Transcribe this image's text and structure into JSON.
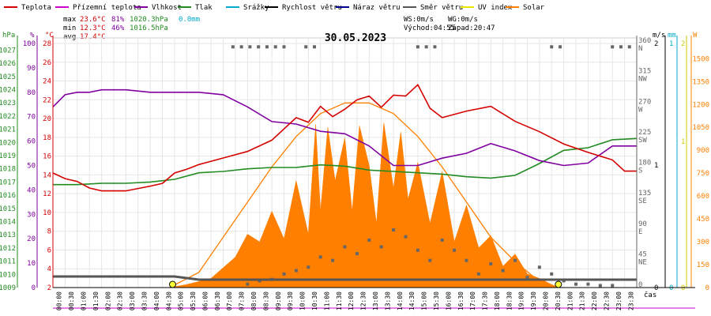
{
  "chart_data": {
    "type": "line",
    "date": "30.05.2023",
    "legend": [
      {
        "label": "Teplota",
        "color": "#d40000"
      },
      {
        "label": "Přízemní teplota",
        "color": "#cc00cc"
      },
      {
        "label": "Vlhkost",
        "color": "#8000a0"
      },
      {
        "label": "Tlak",
        "color": "#228b22"
      },
      {
        "label": "Srážky",
        "color": "#00aacc"
      },
      {
        "label": "Rychlost větru",
        "color": "#000000"
      },
      {
        "label": "Náraz větru",
        "color": "#000090"
      },
      {
        "label": "Směr větru",
        "color": "#555555"
      },
      {
        "label": "UV index",
        "color": "#e8e800"
      },
      {
        "label": "Solar",
        "color": "#ff8000"
      }
    ],
    "stats": {
      "max": {
        "label": "max",
        "temp": "23.6°C",
        "hum": "81%",
        "press": "1020.3hPa",
        "rain": "0.0mm"
      },
      "min": {
        "label": "min",
        "temp": "12.3°C",
        "hum": "46%",
        "press": "1016.5hPa"
      },
      "avg": {
        "label": "avg",
        "temp": "17.4°C"
      }
    },
    "wind_info": {
      "ws": "WS:0m/s",
      "wg": "WG:0m/s",
      "sunrise": "Východ:04:55",
      "sunset": "Západ:20:47"
    },
    "axes": {
      "hpa_unit": "hPa",
      "hpa": [
        "1027",
        "1026",
        "1025",
        "1024",
        "1023",
        "1022",
        "1021",
        "1020",
        "1019",
        "1018",
        "1017",
        "1016",
        "1015",
        "1014",
        "1013",
        "1012",
        "1011",
        "1010",
        "1009"
      ],
      "pct_unit": "%",
      "pct": [
        "100",
        "90",
        "80",
        "70",
        "60",
        "50",
        "40",
        "30",
        "20",
        "10",
        "0"
      ],
      "temp_unit": "°C",
      "temp": [
        "28",
        "26",
        "24",
        "22",
        "20",
        "18",
        "16",
        "14",
        "12",
        "10",
        "8",
        "6",
        "4",
        "2"
      ],
      "dir_labels": [
        {
          "deg": "360",
          "dir": "N"
        },
        {
          "deg": "315",
          "dir": "NW"
        },
        {
          "deg": "270",
          "dir": "W"
        },
        {
          "deg": "225",
          "dir": "SW"
        },
        {
          "deg": "180",
          "dir": "S"
        },
        {
          "deg": "135",
          "dir": "SE"
        },
        {
          "deg": "90",
          "dir": "E"
        },
        {
          "deg": "45",
          "dir": "NE"
        },
        {
          "deg": "0",
          "dir": ""
        }
      ],
      "ms_unit": "m/s",
      "ms": [
        "2",
        "1",
        "0"
      ],
      "mm_unit": "mm",
      "mm": [
        "1",
        "0"
      ],
      "uv": [
        "2",
        "1",
        "0"
      ],
      "w_unit": "W",
      "w": [
        "1500",
        "1350",
        "1200",
        "1050",
        "900",
        "750",
        "600",
        "450",
        "300",
        "150",
        "0"
      ],
      "time_unit": "čas",
      "x_ticks": [
        "00:00",
        "00:30",
        "01:00",
        "01:30",
        "02:00",
        "02:30",
        "03:00",
        "03:30",
        "04:00",
        "04:30",
        "05:00",
        "05:30",
        "06:00",
        "06:30",
        "07:00",
        "07:30",
        "08:00",
        "08:30",
        "09:00",
        "09:30",
        "10:00",
        "10:30",
        "11:00",
        "11:30",
        "12:00",
        "12:30",
        "13:00",
        "13:30",
        "14:00",
        "14:30",
        "15:00",
        "15:30",
        "16:00",
        "16:30",
        "17:00",
        "17:30",
        "18:00",
        "18:30",
        "19:00",
        "19:30",
        "20:00",
        "20:30",
        "21:00",
        "21:30",
        "22:00",
        "22:30",
        "23:00",
        "23:30"
      ]
    },
    "series": {
      "temperature_c": {
        "hours": [
          0,
          0.5,
          1,
          1.5,
          2,
          3,
          4,
          4.5,
          5,
          5.5,
          6,
          7,
          8,
          9,
          10,
          10.5,
          11,
          11.5,
          12,
          12.5,
          13,
          13.5,
          14,
          14.5,
          15,
          15.5,
          16,
          17,
          18,
          19,
          20,
          21,
          22,
          23,
          23.5,
          24
        ],
        "values": [
          14.2,
          13.6,
          13.3,
          12.6,
          12.3,
          12.3,
          12.8,
          13.1,
          14.2,
          14.6,
          15.1,
          15.8,
          16.5,
          17.7,
          20.1,
          19.6,
          21.3,
          20.2,
          21.0,
          22.0,
          22.4,
          21.2,
          22.5,
          22.4,
          23.6,
          21.1,
          20.1,
          20.8,
          21.3,
          19.7,
          18.6,
          17.3,
          16.4,
          15.6,
          14.4,
          14.4
        ]
      },
      "humidity_pct": {
        "hours": [
          0,
          0.5,
          1,
          1.5,
          2,
          3,
          4,
          5,
          6,
          7,
          8,
          9,
          10,
          11,
          12,
          13,
          14,
          15,
          16,
          17,
          18,
          19,
          20,
          21,
          22,
          23,
          24
        ],
        "values": [
          74,
          79,
          80,
          80,
          81,
          81,
          80,
          80,
          80,
          79,
          74,
          68,
          67,
          64,
          63,
          58,
          50,
          50,
          53,
          55,
          59,
          56,
          52,
          50,
          51,
          58,
          58
        ]
      },
      "pressure_hpa": {
        "hours": [
          0,
          1,
          2,
          3,
          4,
          5,
          6,
          7,
          8,
          9,
          10,
          11,
          12,
          13,
          14,
          15,
          16,
          17,
          18,
          19,
          20,
          21,
          22,
          23,
          24
        ],
        "values": [
          1016.8,
          1016.8,
          1016.9,
          1016.9,
          1017.0,
          1017.2,
          1017.7,
          1017.8,
          1018.0,
          1018.1,
          1018.1,
          1018.3,
          1018.2,
          1017.9,
          1017.8,
          1017.7,
          1017.6,
          1017.4,
          1017.3,
          1017.5,
          1018.4,
          1019.4,
          1019.6,
          1020.2,
          1020.3
        ]
      },
      "solar_clear_sky_w": {
        "hours": [
          4.8,
          6,
          7,
          8,
          9,
          10,
          11,
          12,
          13,
          14,
          15,
          16,
          17,
          18,
          19,
          20,
          20.8
        ],
        "values": [
          0,
          100,
          330,
          560,
          790,
          990,
          1140,
          1210,
          1210,
          1140,
          990,
          790,
          560,
          330,
          170,
          40,
          0
        ]
      },
      "solar_w": {
        "hours": [
          4.8,
          5.5,
          6,
          6.5,
          7,
          7.5,
          8,
          8.5,
          9,
          9.5,
          10,
          10.5,
          10.8,
          11,
          11.3,
          11.6,
          12,
          12.3,
          12.6,
          13,
          13.3,
          13.6,
          14,
          14.3,
          14.6,
          15,
          15.5,
          16,
          16.5,
          17,
          17.5,
          18,
          18.5,
          19,
          19.5,
          20,
          20.5,
          20.8
        ],
        "values": [
          0,
          20,
          40,
          60,
          130,
          200,
          350,
          300,
          500,
          320,
          700,
          350,
          1070,
          500,
          1050,
          700,
          980,
          500,
          1060,
          800,
          420,
          1080,
          650,
          1020,
          580,
          820,
          420,
          760,
          300,
          540,
          260,
          340,
          140,
          220,
          90,
          60,
          20,
          0
        ]
      },
      "wind_direction_deg": {
        "hours": [
          8,
          8.5,
          9,
          9.5,
          10,
          10.5,
          11,
          11.5,
          12,
          12.5,
          13,
          13.5,
          14,
          14.5,
          15,
          15.5,
          16,
          16.5,
          17,
          17.5,
          18,
          18.5,
          19,
          19.5,
          20,
          20.5,
          21,
          21.5,
          22,
          22.5,
          23
        ],
        "values": [
          5,
          10,
          12,
          20,
          25,
          30,
          45,
          40,
          60,
          50,
          70,
          60,
          85,
          75,
          55,
          40,
          70,
          55,
          40,
          20,
          35,
          25,
          40,
          15,
          30,
          20,
          10,
          5,
          5,
          3,
          3
        ]
      },
      "wind_speed_ms": {
        "hours": [
          0,
          1,
          2,
          3,
          4,
          5,
          6,
          7,
          8,
          9,
          10,
          11,
          12,
          13,
          14,
          15,
          16,
          17,
          18,
          19,
          20,
          21,
          22,
          23,
          24
        ],
        "values": [
          0.1,
          0.1,
          0.1,
          0.1,
          0.1,
          0.1,
          0.0,
          0.0,
          0.0,
          0.0,
          0.0,
          0.0,
          0.0,
          0.0,
          0.0,
          0.0,
          0.0,
          0.0,
          0.0,
          0.0,
          0.0,
          0.0,
          0.0,
          0.0,
          0.0
        ]
      }
    },
    "markers": {
      "sunrise_hour": 4.92,
      "sunset_hour": 20.78
    },
    "ranges": {
      "temp": [
        2,
        28
      ],
      "humidity": [
        0,
        100
      ],
      "pressure": [
        1009,
        1027.5
      ],
      "solar": [
        0,
        1600
      ],
      "direction": [
        0,
        360
      ],
      "hours": [
        0,
        24
      ]
    }
  }
}
